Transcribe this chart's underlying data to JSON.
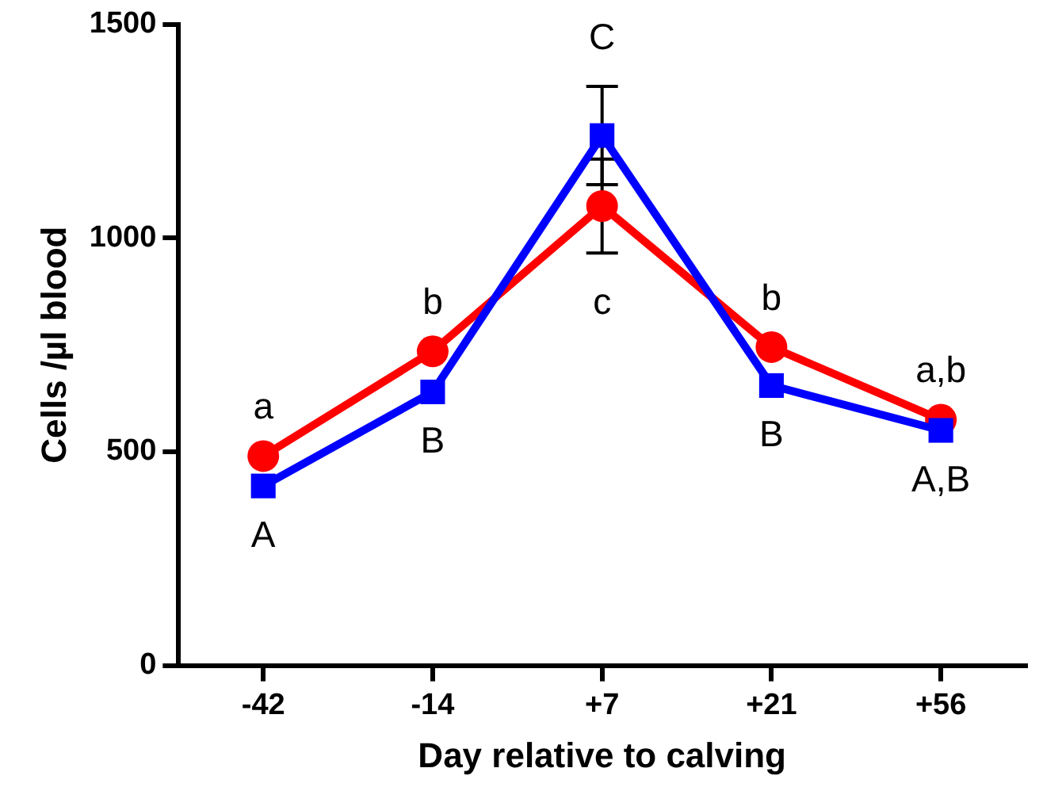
{
  "chart_data": {
    "type": "line",
    "xlabel": "Day relative to calving",
    "ylabel": "Cells /µl blood",
    "categories": [
      "-42",
      "-14",
      "+7",
      "+21",
      "+56"
    ],
    "series": [
      {
        "color": "#0000ff",
        "marker": "square",
        "values": [
          420,
          640,
          1240,
          655,
          550
        ],
        "errors": [
          null,
          null,
          115,
          null,
          null
        ],
        "value_labels": [
          "A",
          "B",
          "C",
          "B",
          "A,B"
        ]
      },
      {
        "color": "#ff0000",
        "marker": "circle",
        "values": [
          490,
          735,
          1075,
          745,
          575
        ],
        "errors": [
          null,
          null,
          110,
          null,
          null
        ],
        "value_labels": [
          "a",
          "b",
          "c",
          "b",
          "a,b"
        ]
      }
    ],
    "ylim": [
      0,
      1500
    ],
    "yticks": [
      0,
      500,
      1000,
      1500
    ],
    "grid": false,
    "legend": false
  }
}
